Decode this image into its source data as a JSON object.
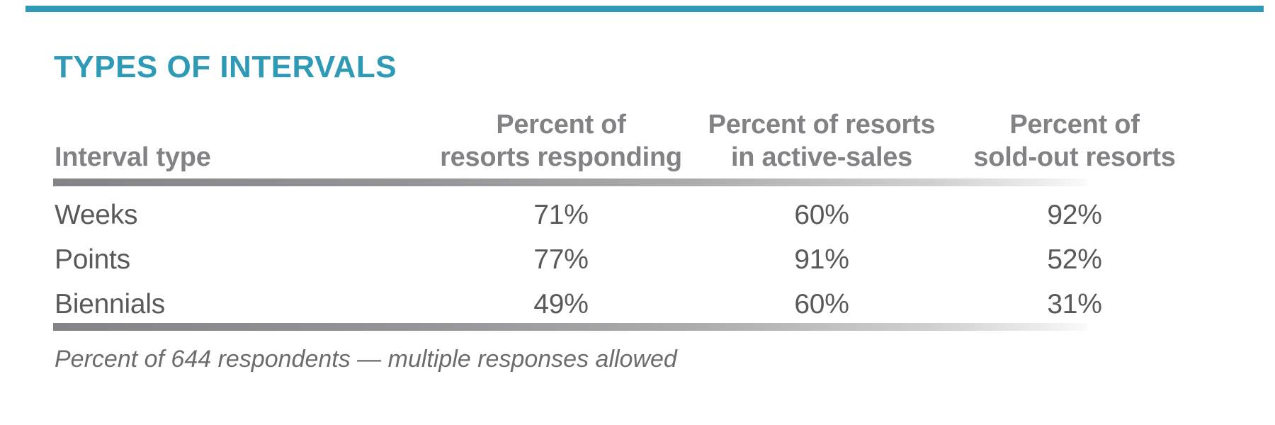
{
  "title": "TYPES OF INTERVALS",
  "colors": {
    "accent_teal": "#2E9AB5",
    "header_text_gray": "#808285",
    "body_text_gray": "#58595B",
    "footnote_gray": "#6A6C6E",
    "rule_gradient_start": "#828487",
    "rule_gradient_end": "#EDEDED"
  },
  "table": {
    "columns": [
      {
        "line1": "Interval type",
        "line2": ""
      },
      {
        "line1": "Percent of",
        "line2": "resorts responding"
      },
      {
        "line1": "Percent of resorts",
        "line2": "in active-sales"
      },
      {
        "line1": "Percent of",
        "line2": "sold-out resorts"
      }
    ],
    "rows": [
      {
        "label": "Weeks",
        "v1": "71%",
        "v2": "60%",
        "v3": "92%"
      },
      {
        "label": "Points",
        "v1": "77%",
        "v2": "91%",
        "v3": "52%"
      },
      {
        "label": "Biennials",
        "v1": "49%",
        "v2": "60%",
        "v3": "31%"
      }
    ],
    "footnote": "Percent of 644 respondents — multiple responses allowed"
  },
  "chart_data": {
    "type": "table",
    "title": "TYPES OF INTERVALS",
    "categories": [
      "Weeks",
      "Points",
      "Biennials"
    ],
    "series": [
      {
        "name": "Percent of resorts responding",
        "values": [
          71,
          77,
          49
        ]
      },
      {
        "name": "Percent of resorts in active-sales",
        "values": [
          60,
          91,
          60
        ]
      },
      {
        "name": "Percent of sold-out resorts",
        "values": [
          92,
          52,
          31
        ]
      }
    ],
    "unit": "%",
    "annotation": "Percent of 644 respondents — multiple responses allowed",
    "layout": {
      "grid": false,
      "legend": "none",
      "header_rule": true,
      "footer_rule": true
    }
  }
}
